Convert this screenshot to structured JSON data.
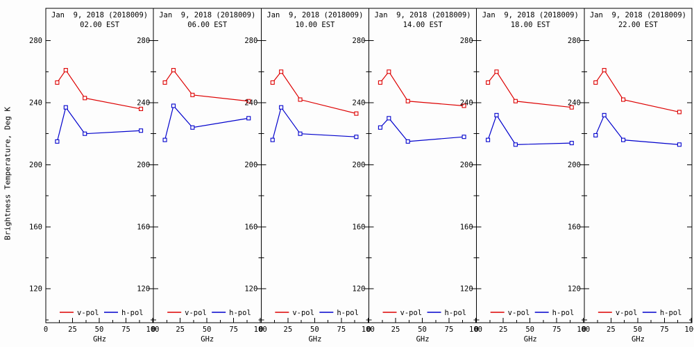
{
  "chart_data": {
    "type": "line",
    "title_date": "Jan  9, 2018 (2018009)",
    "xlabel": "GHz",
    "ylabel": "Brightness Temperature, Deg K",
    "x": [
      10.65,
      18.7,
      36.5,
      89.0
    ],
    "x_ticks": [
      0,
      25,
      50,
      75,
      100
    ],
    "y_ticks": [
      120,
      160,
      200,
      240,
      280
    ],
    "y_minor_ticks": [
      100,
      140,
      180,
      220,
      260
    ],
    "xlim": [
      0,
      100.75
    ],
    "ylim": [
      100,
      300
    ],
    "grid": false,
    "legend_position": "bottom-inside",
    "legend": [
      {
        "label": "v-pol",
        "color": "#dd0000"
      },
      {
        "label": "h-pol",
        "color": "#0000cc"
      }
    ],
    "panels": [
      {
        "time": "18.00 EST",
        "order": 5,
        "series": [
          {
            "name": "v-pol",
            "color": "#dd0000",
            "values": [
              253,
              260,
              241,
              237
            ]
          },
          {
            "name": "h-pol",
            "color": "#0000cc",
            "values": [
              216,
              232,
              213,
              214
            ]
          }
        ]
      },
      {
        "time": "22.00 EST",
        "order": 6,
        "series": [
          {
            "name": "v-pol",
            "color": "#dd0000",
            "values": [
              253,
              261,
              242,
              234
            ]
          },
          {
            "name": "h-pol",
            "color": "#0000cc",
            "values": [
              219,
              232,
              216,
              213
            ]
          }
        ]
      }
    ],
    "panels_all": [
      {
        "time": "02.00 EST",
        "series": [
          {
            "name": "v-pol",
            "color": "#dd0000",
            "values": [
              253,
              261,
              243,
              236
            ]
          },
          {
            "name": "h-pol",
            "color": "#0000cc",
            "values": [
              215,
              237,
              220,
              222
            ]
          }
        ]
      },
      {
        "time": "06.00 EST",
        "series": [
          {
            "name": "v-pol",
            "color": "#dd0000",
            "values": [
              253,
              261,
              245,
              241
            ]
          },
          {
            "name": "h-pol",
            "color": "#0000cc",
            "values": [
              216,
              238,
              224,
              230
            ]
          }
        ]
      },
      {
        "time": "10.00 EST",
        "series": [
          {
            "name": "v-pol",
            "color": "#dd0000",
            "values": [
              253,
              260,
              242,
              233
            ]
          },
          {
            "name": "h-pol",
            "color": "#0000cc",
            "values": [
              216,
              237,
              220,
              218
            ]
          }
        ]
      },
      {
        "time": "14.00 EST",
        "series": [
          {
            "name": "v-pol",
            "color": "#dd0000",
            "values": [
              253,
              260,
              241,
              238
            ]
          },
          {
            "name": "h-pol",
            "color": "#0000cc",
            "values": [
              224,
              230,
              215,
              218
            ]
          }
        ]
      },
      {
        "time": "18.00 EST",
        "series": [
          {
            "name": "v-pol",
            "color": "#dd0000",
            "values": [
              253,
              260,
              241,
              237
            ]
          },
          {
            "name": "h-pol",
            "color": "#0000cc",
            "values": [
              216,
              232,
              213,
              214
            ]
          }
        ]
      },
      {
        "time": "22.00 EST",
        "series": [
          {
            "name": "v-pol",
            "color": "#dd0000",
            "values": [
              253,
              261,
              242,
              234
            ]
          },
          {
            "name": "h-pol",
            "color": "#0000cc",
            "values": [
              219,
              232,
              216,
              213
            ]
          }
        ]
      }
    ]
  }
}
